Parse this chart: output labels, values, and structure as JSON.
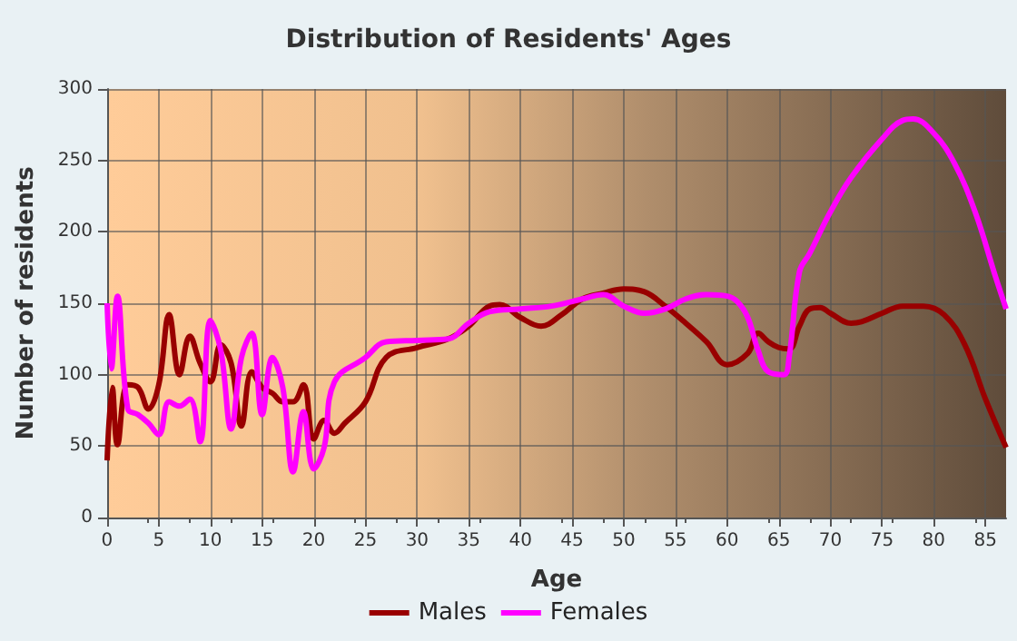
{
  "chart_data": {
    "type": "line",
    "title": "Distribution of Residents' Ages",
    "xlabel": "Age",
    "ylabel": "Number of residents",
    "series": [
      {
        "name": "Males",
        "color": "#990000",
        "x": [
          0,
          0.5,
          1,
          2,
          3,
          4,
          5,
          6,
          7,
          8,
          9,
          10,
          11,
          12,
          13,
          14,
          15,
          16,
          17,
          18,
          19,
          20,
          21,
          22,
          23,
          25,
          27,
          30,
          33,
          35,
          37,
          38,
          40,
          42,
          44,
          46,
          48,
          50,
          52,
          54,
          56,
          58,
          60,
          62,
          63,
          64,
          65,
          66,
          67,
          68,
          69,
          70,
          72,
          73,
          75,
          77,
          79,
          81,
          83,
          85,
          87
        ],
        "values": [
          40,
          91,
          51,
          93,
          91,
          76,
          93,
          142,
          100,
          127,
          108,
          95,
          121,
          108,
          64,
          102,
          91,
          87,
          81,
          81,
          93,
          55,
          68,
          59,
          66,
          81,
          112,
          119,
          125,
          134,
          148,
          149,
          140,
          134,
          142,
          153,
          157,
          160,
          158,
          148,
          136,
          123,
          107,
          115,
          129,
          123,
          119,
          118,
          134,
          146,
          147,
          143,
          136,
          137,
          143,
          148,
          148,
          142,
          121,
          83,
          49
        ]
      },
      {
        "name": "Females",
        "color": "#ff00ff",
        "x": [
          0,
          0.4,
          1,
          2,
          3,
          4,
          5,
          6,
          7,
          8,
          9,
          10,
          11,
          12,
          13,
          14,
          15,
          16,
          17,
          18,
          19,
          20,
          21,
          22,
          25,
          27,
          30,
          33,
          35,
          37,
          40,
          43,
          46,
          48,
          50,
          52,
          54,
          56,
          58,
          60,
          61,
          62,
          63,
          64,
          65.5,
          66,
          67,
          68,
          70,
          72,
          75,
          77,
          78,
          80,
          82,
          84,
          86,
          87
        ],
        "values": [
          150,
          104,
          155,
          76,
          72,
          66,
          58,
          81,
          78,
          83,
          53,
          138,
          117,
          62,
          112,
          129,
          72,
          112,
          91,
          32,
          74,
          34,
          49,
          95,
          112,
          123,
          124,
          125,
          136,
          144,
          146,
          148,
          153,
          156,
          148,
          143,
          146,
          153,
          156,
          155,
          151,
          140,
          117,
          102,
          100,
          112,
          172,
          185,
          214,
          238,
          265,
          278,
          279,
          269,
          248,
          214,
          168,
          146
        ]
      }
    ],
    "xlim": [
      0,
      87
    ],
    "xticks": [
      0,
      5,
      10,
      15,
      20,
      25,
      30,
      35,
      40,
      45,
      50,
      55,
      60,
      65,
      70,
      75,
      80,
      85
    ],
    "ylim": [
      0,
      300
    ],
    "yticks": [
      0,
      50,
      100,
      150,
      200,
      250,
      300
    ],
    "grid": true,
    "legend": "bottom"
  }
}
